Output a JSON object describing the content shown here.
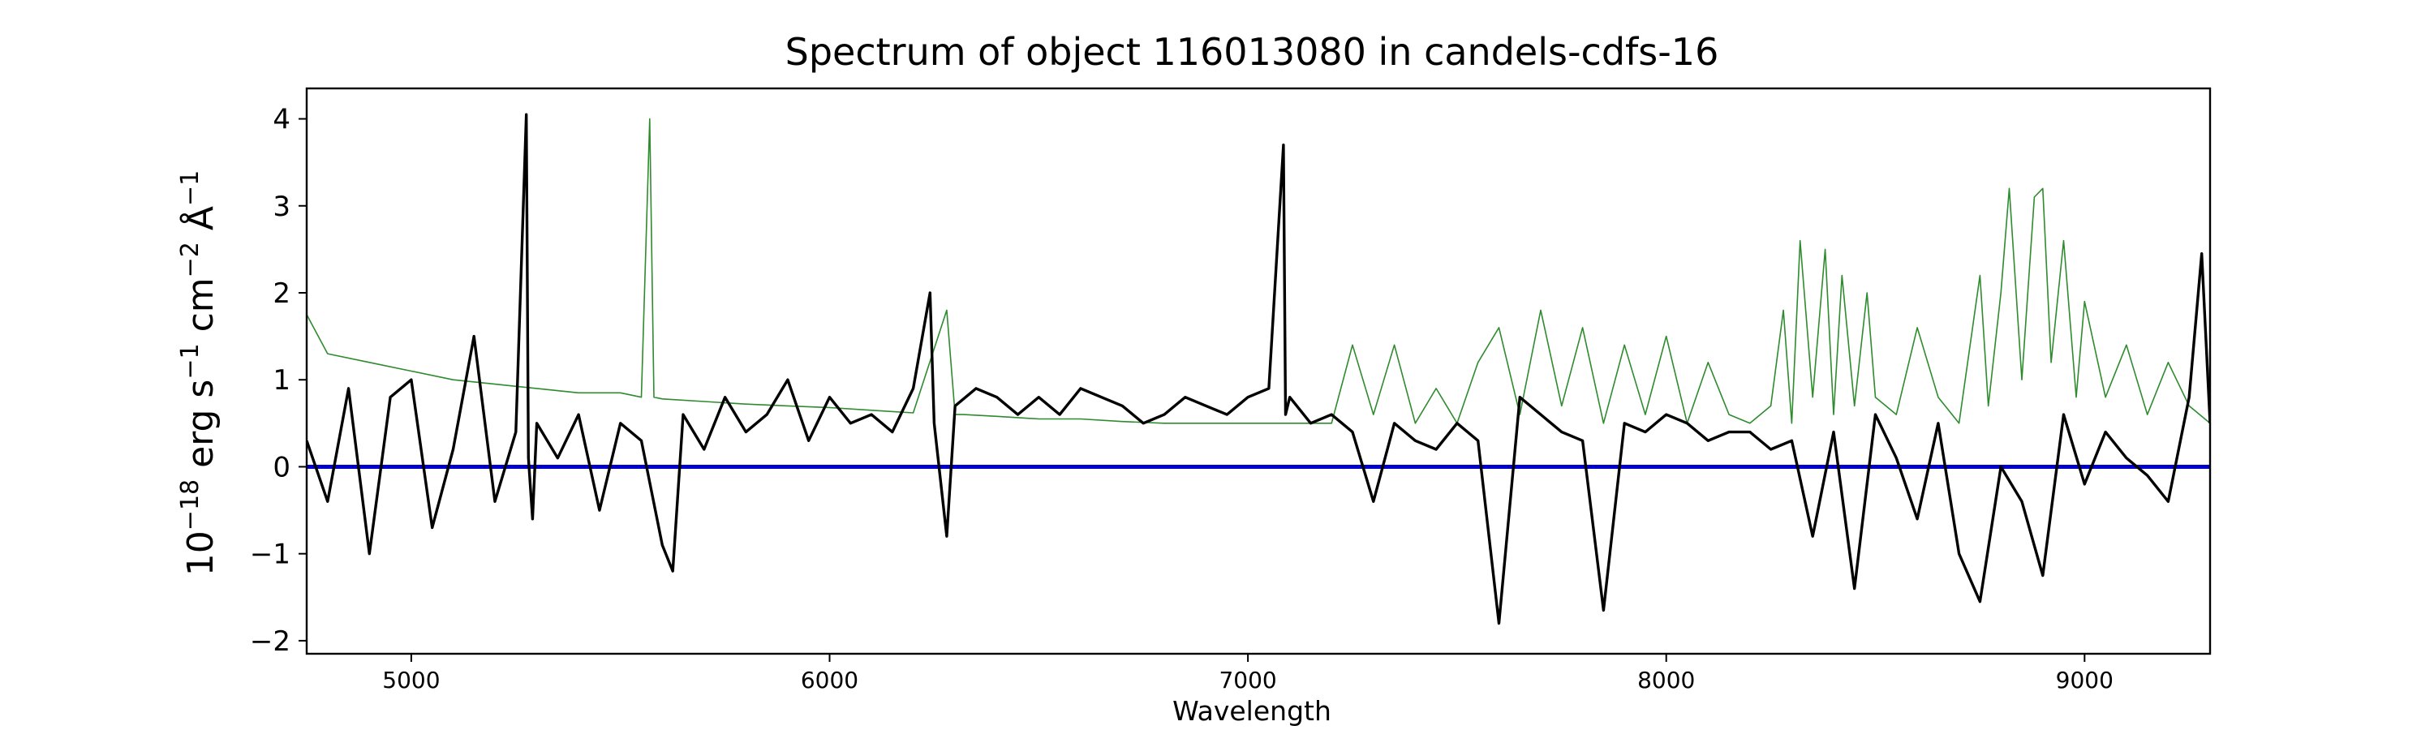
{
  "chart_data": {
    "type": "line",
    "title": "Spectrum of object 116013080 in candels-cdfs-16",
    "xlabel": "Wavelength",
    "ylabel": "10^-18 erg s^-1 cm^-2 Å^-1",
    "ylabel_parts": {
      "base": "10",
      "exp1": "−18",
      "mid1": " erg s",
      "exp2": "−1",
      "mid2": " cm",
      "exp3": "−2",
      "mid3": " Å",
      "exp4": "−1"
    },
    "xlim": [
      4750,
      9300
    ],
    "ylim": [
      -2.15,
      4.35
    ],
    "xticks": [
      5000,
      6000,
      7000,
      8000,
      9000
    ],
    "xtick_labels": [
      "5000",
      "6000",
      "7000",
      "8000",
      "9000"
    ],
    "yticks": [
      -2,
      -1,
      0,
      1,
      2,
      3,
      4
    ],
    "ytick_labels": [
      "−2",
      "−1",
      "0",
      "1",
      "2",
      "3",
      "4"
    ],
    "grid": false,
    "legend": null,
    "colors": {
      "spectrum": "#000000",
      "sky": "#2e8b2e",
      "zero": "#0000cc"
    },
    "series": [
      {
        "role": "spectrum",
        "x": [
          4750,
          4800,
          4850,
          4900,
          4950,
          5000,
          5050,
          5100,
          5150,
          5200,
          5250,
          5275,
          5280,
          5290,
          5300,
          5350,
          5400,
          5450,
          5500,
          5550,
          5600,
          5625,
          5650,
          5700,
          5750,
          5800,
          5850,
          5900,
          5950,
          6000,
          6050,
          6100,
          6150,
          6200,
          6240,
          6250,
          6280,
          6300,
          6350,
          6400,
          6450,
          6500,
          6550,
          6600,
          6650,
          6700,
          6750,
          6800,
          6850,
          6900,
          6950,
          7000,
          7050,
          7085,
          7090,
          7100,
          7150,
          7200,
          7250,
          7300,
          7350,
          7400,
          7450,
          7500,
          7550,
          7600,
          7650,
          7700,
          7750,
          7800,
          7850,
          7900,
          7950,
          8000,
          8050,
          8100,
          8150,
          8200,
          8250,
          8300,
          8350,
          8400,
          8450,
          8500,
          8550,
          8600,
          8650,
          8700,
          8750,
          8800,
          8850,
          8900,
          8950,
          9000,
          9050,
          9100,
          9150,
          9200,
          9250,
          9280,
          9300
        ],
        "y": [
          0.3,
          -0.4,
          0.9,
          -1.0,
          0.8,
          1.0,
          -0.7,
          0.2,
          1.5,
          -0.4,
          0.4,
          4.05,
          0.1,
          -0.6,
          0.5,
          0.1,
          0.6,
          -0.5,
          0.5,
          0.3,
          -0.9,
          -1.2,
          0.6,
          0.2,
          0.8,
          0.4,
          0.6,
          1.0,
          0.3,
          0.8,
          0.5,
          0.6,
          0.4,
          0.9,
          2.0,
          0.5,
          -0.8,
          0.7,
          0.9,
          0.8,
          0.6,
          0.8,
          0.6,
          0.9,
          0.8,
          0.7,
          0.5,
          0.6,
          0.8,
          0.7,
          0.6,
          0.8,
          0.9,
          3.7,
          0.6,
          0.8,
          0.5,
          0.6,
          0.4,
          -0.4,
          0.5,
          0.3,
          0.2,
          0.5,
          0.3,
          -1.8,
          0.8,
          0.6,
          0.4,
          0.3,
          -1.65,
          0.5,
          0.4,
          0.6,
          0.5,
          0.3,
          0.4,
          0.4,
          0.2,
          0.3,
          -0.8,
          0.4,
          -1.4,
          0.6,
          0.1,
          -0.6,
          0.5,
          -1.0,
          -1.55,
          0.0,
          -0.4,
          -1.25,
          0.6,
          -0.2,
          0.4,
          0.1,
          -0.1,
          -0.4,
          0.8,
          2.45,
          0.5
        ]
      },
      {
        "role": "sky",
        "x": [
          4750,
          4800,
          4900,
          5000,
          5100,
          5200,
          5300,
          5400,
          5500,
          5550,
          5570,
          5580,
          5600,
          5700,
          5800,
          5900,
          6000,
          6100,
          6200,
          6280,
          6300,
          6320,
          6400,
          6500,
          6600,
          6700,
          6800,
          6900,
          7000,
          7100,
          7200,
          7250,
          7300,
          7350,
          7400,
          7450,
          7500,
          7550,
          7600,
          7650,
          7700,
          7750,
          7800,
          7850,
          7900,
          7950,
          8000,
          8050,
          8100,
          8150,
          8200,
          8250,
          8280,
          8300,
          8320,
          8350,
          8380,
          8400,
          8420,
          8450,
          8480,
          8500,
          8550,
          8600,
          8650,
          8700,
          8750,
          8770,
          8800,
          8820,
          8850,
          8880,
          8900,
          8920,
          8950,
          8980,
          9000,
          9050,
          9100,
          9150,
          9200,
          9250,
          9300
        ],
        "y": [
          1.75,
          1.3,
          1.2,
          1.1,
          1.0,
          0.95,
          0.9,
          0.85,
          0.85,
          0.8,
          4.0,
          0.8,
          0.78,
          0.75,
          0.72,
          0.7,
          0.68,
          0.65,
          0.62,
          1.8,
          0.6,
          0.6,
          0.58,
          0.55,
          0.55,
          0.52,
          0.5,
          0.5,
          0.5,
          0.5,
          0.5,
          1.4,
          0.6,
          1.4,
          0.5,
          0.9,
          0.5,
          1.2,
          1.6,
          0.6,
          1.8,
          0.7,
          1.6,
          0.5,
          1.4,
          0.6,
          1.5,
          0.5,
          1.2,
          0.6,
          0.5,
          0.7,
          1.8,
          0.5,
          2.6,
          0.8,
          2.5,
          0.6,
          2.2,
          0.7,
          2.0,
          0.8,
          0.6,
          1.6,
          0.8,
          0.5,
          2.2,
          0.7,
          2.0,
          3.2,
          1.0,
          3.1,
          3.2,
          1.2,
          2.6,
          0.8,
          1.9,
          0.8,
          1.4,
          0.6,
          1.2,
          0.7,
          0.5
        ]
      },
      {
        "role": "zero",
        "x": [
          4750,
          9300
        ],
        "y": [
          0,
          0
        ]
      }
    ]
  }
}
